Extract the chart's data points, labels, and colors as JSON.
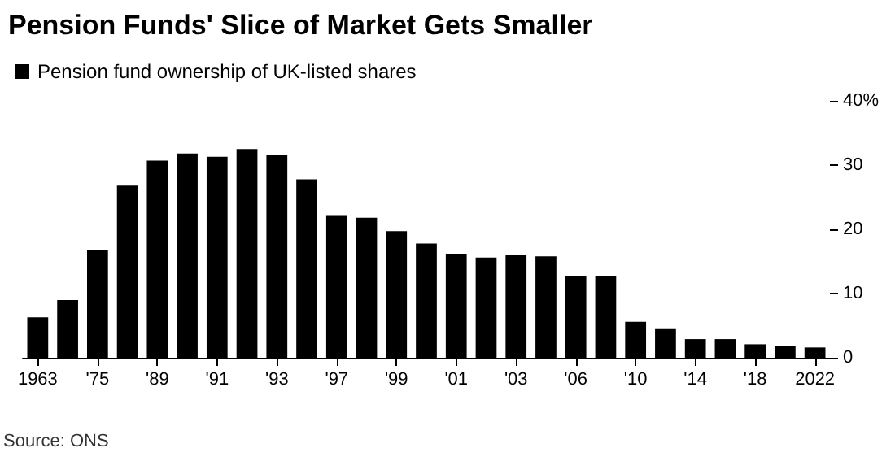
{
  "chart_data": {
    "type": "bar",
    "title": "Pension Funds' Slice of Market Gets Smaller",
    "categories": [
      "1963",
      null,
      "'75",
      null,
      "'89",
      null,
      "'91",
      null,
      "'93",
      null,
      "'97",
      null,
      "'99",
      null,
      "'01",
      null,
      "'03",
      null,
      "'06",
      null,
      "'10",
      null,
      "'14",
      null,
      "'18",
      null,
      "2022"
    ],
    "series": [
      {
        "name": "Pension fund ownership of UK-listed shares",
        "color": "#000000",
        "values": [
          6.3,
          9.0,
          16.8,
          26.8,
          30.7,
          31.8,
          31.3,
          32.5,
          31.6,
          27.8,
          22.1,
          21.8,
          19.7,
          17.8,
          16.2,
          15.6,
          16.0,
          15.8,
          12.8,
          12.8,
          5.6,
          4.6,
          2.9,
          2.9,
          2.1,
          1.8,
          1.6
        ]
      }
    ],
    "ylim": [
      0,
      40
    ],
    "yticks": [
      0,
      10,
      20,
      30,
      {
        "value": 40,
        "label": "40%"
      }
    ],
    "grid": false,
    "legend": "top left",
    "annotations": [
      "Source: ONS"
    ]
  }
}
